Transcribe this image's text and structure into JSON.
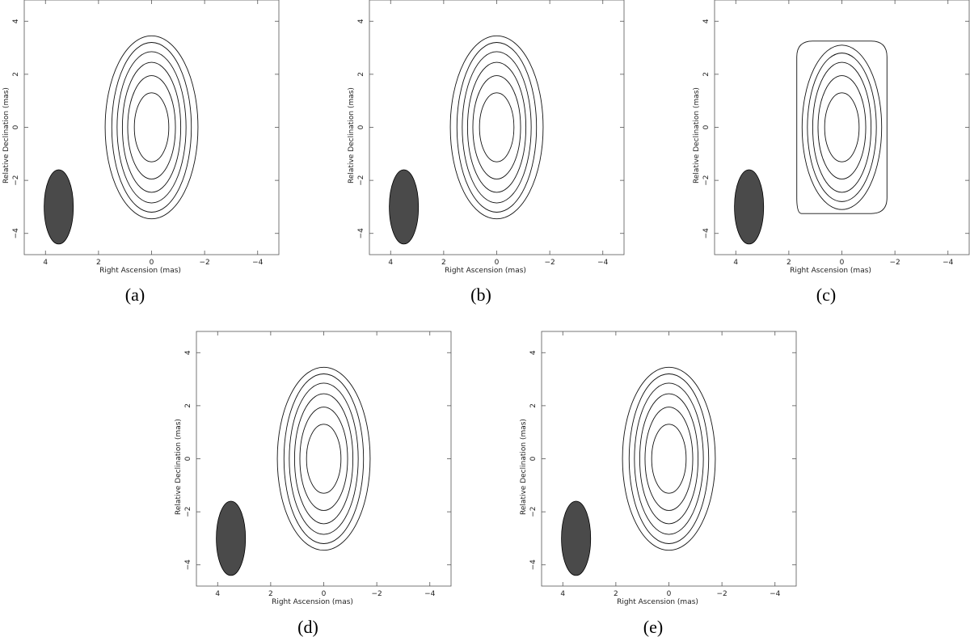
{
  "chart_data": [
    {
      "type": "contour",
      "panel_label": "(a)",
      "xlabel": "Right Ascension  (mas)",
      "ylabel": "Relative Declination  (mas)",
      "xlim": [
        4.8,
        -4.8
      ],
      "ylim": [
        -4.8,
        4.8
      ],
      "x_ticks": [
        4,
        2,
        0,
        -2,
        -4
      ],
      "y_ticks": [
        4,
        2,
        0,
        -2,
        -4
      ],
      "tick_labels_x": [
        "4",
        "2",
        "0",
        "−2",
        "−4"
      ],
      "tick_labels_y": [
        "4",
        "2",
        "0",
        "−2",
        "−4"
      ],
      "beam": {
        "center": [
          3.5,
          -3.0
        ],
        "ra_half_width": 0.55,
        "dec_half_height": 1.4,
        "color": "#4a4a4a"
      },
      "contours": [
        {
          "ra_half_width": 0.65,
          "dec_half_height": 1.3
        },
        {
          "ra_half_width": 0.9,
          "dec_half_height": 1.95
        },
        {
          "ra_half_width": 1.1,
          "dec_half_height": 2.45
        },
        {
          "ra_half_width": 1.3,
          "dec_half_height": 2.85
        },
        {
          "ra_half_width": 1.5,
          "dec_half_height": 3.2
        },
        {
          "ra_half_width": 1.75,
          "dec_half_height": 3.45
        }
      ]
    },
    {
      "type": "contour",
      "panel_label": "(b)",
      "xlabel": "Right Ascension  (mas)",
      "ylabel": "Relative Declination  (mas)",
      "xlim": [
        4.8,
        -4.8
      ],
      "ylim": [
        -4.8,
        4.8
      ],
      "x_ticks": [
        4,
        2,
        0,
        -2,
        -4
      ],
      "y_ticks": [
        4,
        2,
        0,
        -2,
        -4
      ],
      "tick_labels_x": [
        "4",
        "2",
        "0",
        "−2",
        "−4"
      ],
      "tick_labels_y": [
        "4",
        "2",
        "0",
        "−2",
        "−4"
      ],
      "beam": {
        "center": [
          3.5,
          -3.0
        ],
        "ra_half_width": 0.55,
        "dec_half_height": 1.4,
        "color": "#4a4a4a"
      },
      "contours": [
        {
          "ra_half_width": 0.65,
          "dec_half_height": 1.3
        },
        {
          "ra_half_width": 0.9,
          "dec_half_height": 1.95
        },
        {
          "ra_half_width": 1.1,
          "dec_half_height": 2.45
        },
        {
          "ra_half_width": 1.3,
          "dec_half_height": 2.85
        },
        {
          "ra_half_width": 1.5,
          "dec_half_height": 3.2
        },
        {
          "ra_half_width": 1.75,
          "dec_half_height": 3.45
        }
      ]
    },
    {
      "type": "contour",
      "panel_label": "(c)",
      "xlabel": "Right Ascension  (mas)",
      "ylabel": "Relative Declination  (mas)",
      "xlim": [
        4.8,
        -4.8
      ],
      "ylim": [
        -4.8,
        4.8
      ],
      "x_ticks": [
        4,
        2,
        0,
        -2,
        -4
      ],
      "y_ticks": [
        4,
        2,
        0,
        -2,
        -4
      ],
      "tick_labels_x": [
        "4",
        "2",
        "0",
        "−2",
        "−4"
      ],
      "tick_labels_y": [
        "4",
        "2",
        "0",
        "−2",
        "−4"
      ],
      "beam": {
        "center": [
          3.5,
          -3.0
        ],
        "ra_half_width": 0.55,
        "dec_half_height": 1.4,
        "color": "#4a4a4a"
      },
      "contours": [
        {
          "ra_half_width": 0.65,
          "dec_half_height": 1.3
        },
        {
          "ra_half_width": 0.9,
          "dec_half_height": 1.95
        },
        {
          "ra_half_width": 1.1,
          "dec_half_height": 2.45
        },
        {
          "ra_half_width": 1.3,
          "dec_half_height": 2.8
        },
        {
          "ra_half_width": 1.5,
          "dec_half_height": 3.1
        }
      ],
      "outer_boxy_contour": {
        "ra_half_width": 1.7,
        "dec_half_height": 3.25
      }
    },
    {
      "type": "contour",
      "panel_label": "(d)",
      "xlabel": "Right Ascension  (mas)",
      "ylabel": "Relative Declination  (mas)",
      "xlim": [
        4.8,
        -4.8
      ],
      "ylim": [
        -4.8,
        4.8
      ],
      "x_ticks": [
        4,
        2,
        0,
        -2,
        -4
      ],
      "y_ticks": [
        4,
        2,
        0,
        -2,
        -4
      ],
      "tick_labels_x": [
        "4",
        "2",
        "0",
        "−2",
        "−4"
      ],
      "tick_labels_y": [
        "4",
        "2",
        "0",
        "−2",
        "−4"
      ],
      "beam": {
        "center": [
          3.5,
          -3.0
        ],
        "ra_half_width": 0.55,
        "dec_half_height": 1.4,
        "color": "#4a4a4a"
      },
      "contours": [
        {
          "ra_half_width": 0.65,
          "dec_half_height": 1.3
        },
        {
          "ra_half_width": 0.9,
          "dec_half_height": 1.95
        },
        {
          "ra_half_width": 1.1,
          "dec_half_height": 2.45
        },
        {
          "ra_half_width": 1.3,
          "dec_half_height": 2.85
        },
        {
          "ra_half_width": 1.5,
          "dec_half_height": 3.2
        },
        {
          "ra_half_width": 1.75,
          "dec_half_height": 3.45
        }
      ]
    },
    {
      "type": "contour",
      "panel_label": "(e)",
      "xlabel": "Right Ascension  (mas)",
      "ylabel": "Relative Declination  (mas)",
      "xlim": [
        4.8,
        -4.8
      ],
      "ylim": [
        -4.8,
        4.8
      ],
      "x_ticks": [
        4,
        2,
        0,
        -2,
        -4
      ],
      "y_ticks": [
        4,
        2,
        0,
        -2,
        -4
      ],
      "tick_labels_x": [
        "4",
        "2",
        "0",
        "−2",
        "−4"
      ],
      "tick_labels_y": [
        "4",
        "2",
        "0",
        "−2",
        "−4"
      ],
      "beam": {
        "center": [
          3.5,
          -3.0
        ],
        "ra_half_width": 0.55,
        "dec_half_height": 1.4,
        "color": "#4a4a4a"
      },
      "contours": [
        {
          "ra_half_width": 0.65,
          "dec_half_height": 1.3
        },
        {
          "ra_half_width": 0.9,
          "dec_half_height": 1.95
        },
        {
          "ra_half_width": 1.1,
          "dec_half_height": 2.45
        },
        {
          "ra_half_width": 1.3,
          "dec_half_height": 2.85
        },
        {
          "ra_half_width": 1.5,
          "dec_half_height": 3.2
        },
        {
          "ra_half_width": 1.75,
          "dec_half_height": 3.45
        }
      ]
    }
  ]
}
